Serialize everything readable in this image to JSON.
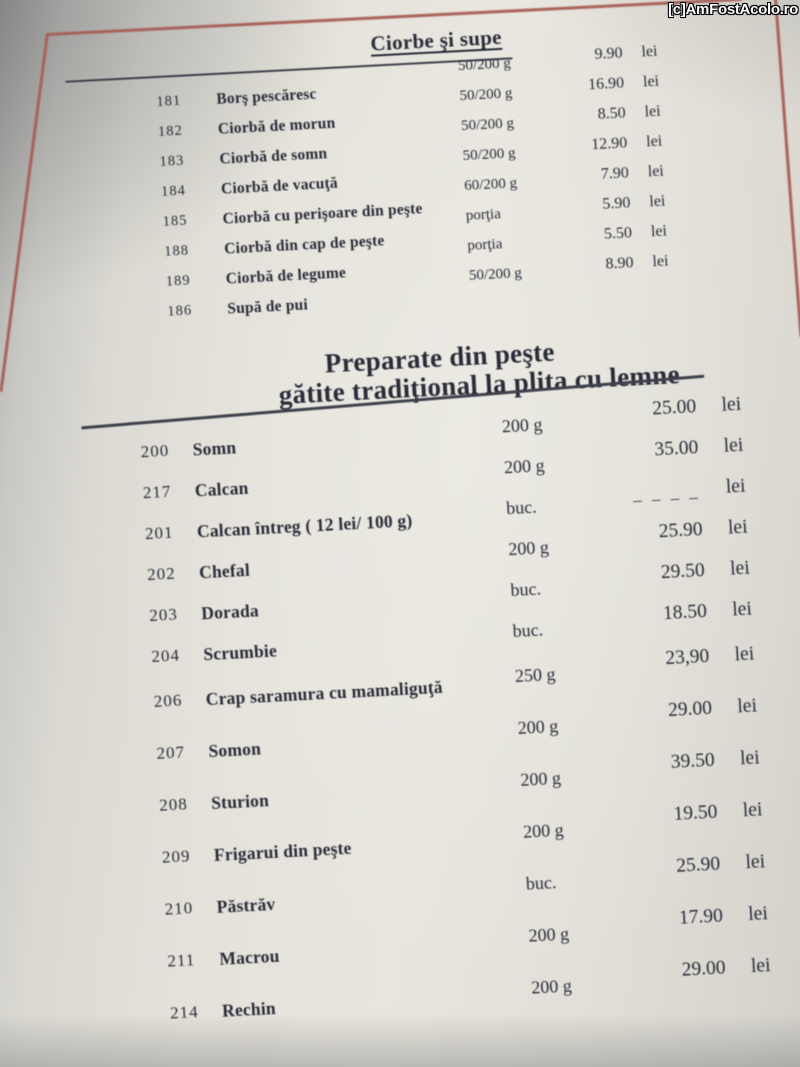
{
  "watermark": "[c]AmFostAcolo.ro",
  "menu": {
    "section1": {
      "title": "Ciorbe şi supe",
      "items": [
        {
          "num": "181",
          "name": "Borş pescăresc",
          "portion": "50/200 g",
          "price": "9.90",
          "unit": "lei"
        },
        {
          "num": "182",
          "name": "Ciorbă de morun",
          "portion": "50/200 g",
          "price": "16.90",
          "unit": "lei"
        },
        {
          "num": "183",
          "name": "Ciorbă de somn",
          "portion": "50/200 g",
          "price": "8.50",
          "unit": "lei"
        },
        {
          "num": "184",
          "name": "Ciorbă de vacuţă",
          "portion": "50/200 g",
          "price": "12.90",
          "unit": "lei"
        },
        {
          "num": "185",
          "name": "Ciorbă cu perişoare din peşte",
          "portion": "60/200 g",
          "price": "7.90",
          "unit": "lei"
        },
        {
          "num": "188",
          "name": "Ciorbă din cap de peşte",
          "portion": "porţia",
          "price": "5.90",
          "unit": "lei"
        },
        {
          "num": "189",
          "name": "Ciorbă de legume",
          "portion": "porţia",
          "price": "5.50",
          "unit": "lei"
        },
        {
          "num": "186",
          "name": "Supă de pui",
          "portion": "50/200 g",
          "price": "8.90",
          "unit": "lei"
        }
      ]
    },
    "section2": {
      "title_line1": "Preparate din peşte",
      "title_line2": "gătite tradiţional la plita cu lemne",
      "items": [
        {
          "num": "200",
          "name": "Somn",
          "portion": "200 g",
          "price": "25.00",
          "unit": "lei"
        },
        {
          "num": "217",
          "name": "Calcan",
          "portion": "200 g",
          "price": "35.00",
          "unit": "lei"
        },
        {
          "num": "201",
          "name": "Calcan întreg ( 12 lei/ 100 g)",
          "portion": "buc.",
          "price": "– – – –",
          "unit": "lei"
        },
        {
          "num": "202",
          "name": "Chefal",
          "portion": "200 g",
          "price": "25.90",
          "unit": "lei"
        },
        {
          "num": "203",
          "name": "Dorada",
          "portion": "buc.",
          "price": "29.50",
          "unit": "lei"
        },
        {
          "num": "204",
          "name": "Scrumbie",
          "portion": "buc.",
          "price": "18.50",
          "unit": "lei"
        },
        {
          "num": "206",
          "name": "Crap saramura cu mamaliguţă",
          "portion": "250 g",
          "price": "23,90",
          "unit": "lei"
        },
        {
          "num": "207",
          "name": "Somon",
          "portion": "200 g",
          "price": "29.00",
          "unit": "lei"
        },
        {
          "num": "208",
          "name": "Sturion",
          "portion": "200 g",
          "price": "39.50",
          "unit": "lei"
        },
        {
          "num": "209",
          "name": "Frigarui din peşte",
          "portion": "200 g",
          "price": "19.50",
          "unit": "lei"
        },
        {
          "num": "210",
          "name": "Păstrăv",
          "portion": "buc.",
          "price": "25.90",
          "unit": "lei"
        },
        {
          "num": "211",
          "name": "Macrou",
          "portion": "200 g",
          "price": "17.90",
          "unit": "lei"
        },
        {
          "num": "214",
          "name": "Rechin",
          "portion": "200 g",
          "price": "29.00",
          "unit": "lei"
        }
      ]
    }
  }
}
